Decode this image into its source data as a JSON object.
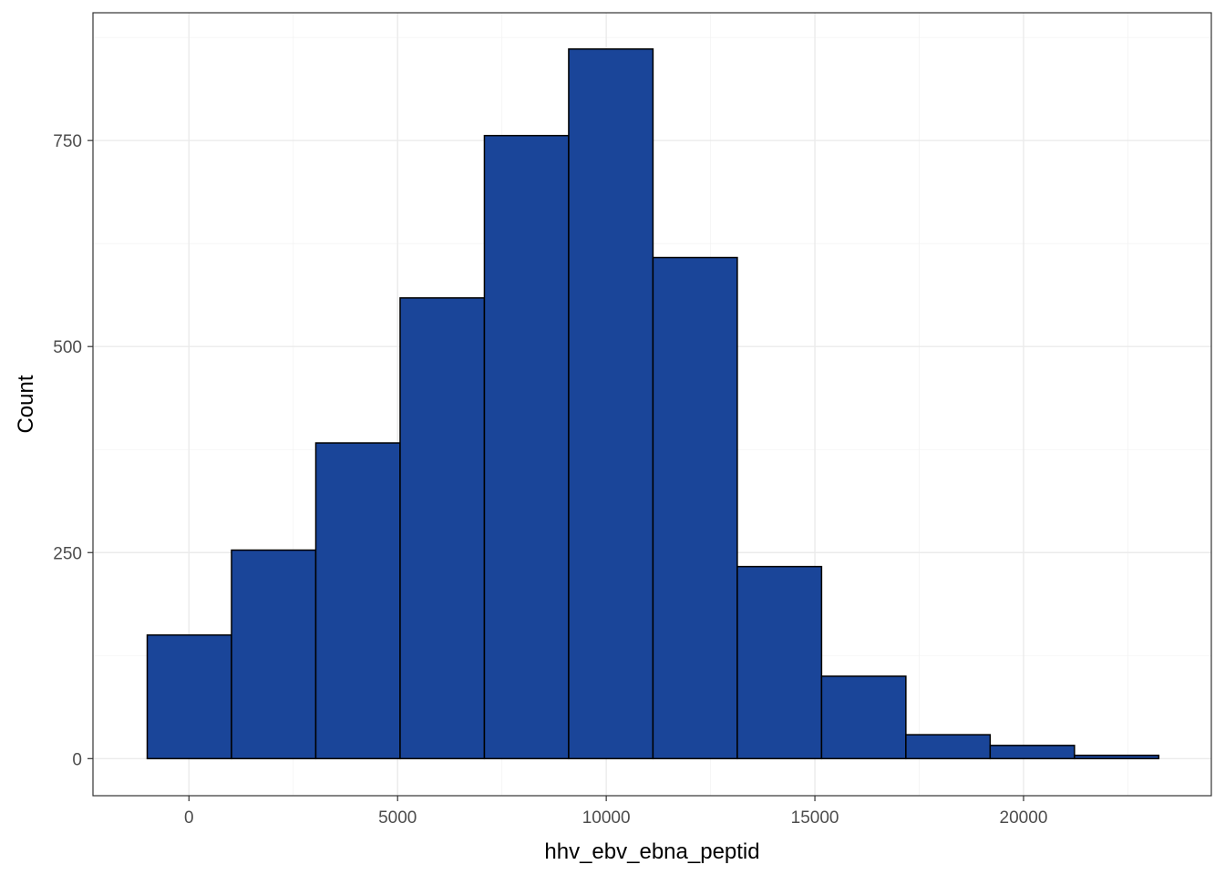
{
  "chart_data": {
    "type": "bar",
    "title": "",
    "xlabel": "hhv_ebv_ebna_peptid",
    "ylabel": "Count",
    "xlim": [
      -2300,
      24500
    ],
    "ylim": [
      -45,
      905
    ],
    "x_ticks": [
      0,
      5000,
      10000,
      15000,
      20000
    ],
    "y_ticks": [
      0,
      250,
      500,
      750
    ],
    "grid": true,
    "bar_color": "#1a4599",
    "bar_outline": "#000000",
    "bins": [
      {
        "x0": -1000,
        "x1": 1020,
        "count": 150
      },
      {
        "x0": 1020,
        "x1": 3040,
        "count": 253
      },
      {
        "x0": 3040,
        "x1": 5060,
        "count": 383
      },
      {
        "x0": 5060,
        "x1": 7080,
        "count": 559
      },
      {
        "x0": 7080,
        "x1": 9100,
        "count": 756
      },
      {
        "x0": 9100,
        "x1": 11120,
        "count": 861
      },
      {
        "x0": 11120,
        "x1": 13140,
        "count": 608
      },
      {
        "x0": 13140,
        "x1": 15160,
        "count": 233
      },
      {
        "x0": 15160,
        "x1": 17180,
        "count": 100
      },
      {
        "x0": 17180,
        "x1": 19200,
        "count": 29
      },
      {
        "x0": 19200,
        "x1": 21220,
        "count": 16
      },
      {
        "x0": 21220,
        "x1": 23240,
        "count": 4
      }
    ]
  }
}
